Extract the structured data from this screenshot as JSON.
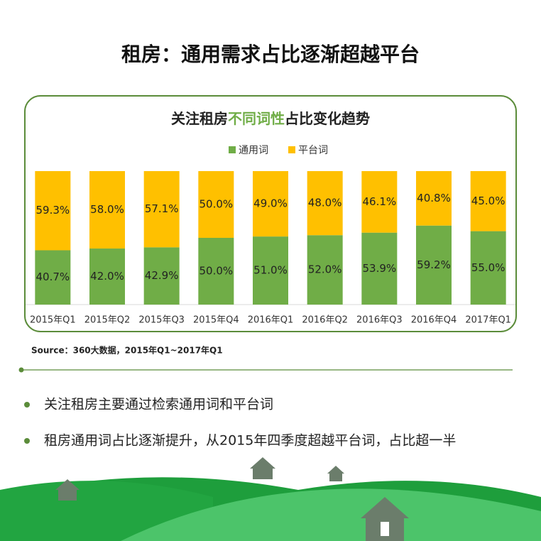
{
  "title": "租房：通用需求占比逐渐超越平台",
  "chart_data": {
    "type": "bar",
    "stacked": true,
    "title": [
      "关注租房",
      "不同词性",
      "占比变化趋势"
    ],
    "categories": [
      "2015年Q1",
      "2015年Q2",
      "2015年Q3",
      "2015年Q4",
      "2016年Q1",
      "2016年Q2",
      "2016年Q3",
      "2016年Q4",
      "2017年Q1"
    ],
    "series": [
      {
        "name": "通用词",
        "color": "#70ad47",
        "values": [
          40.7,
          42.0,
          42.9,
          50.0,
          51.0,
          52.0,
          53.9,
          59.2,
          55.0
        ],
        "value_labels": [
          "40.7%",
          "42.0%",
          "42.9%",
          "50.0%",
          "51.0%",
          "52.0%",
          "53.9%",
          "59.2%",
          "55.0%"
        ]
      },
      {
        "name": "平台词",
        "color": "#ffc000",
        "values": [
          59.3,
          58.0,
          57.1,
          50.0,
          49.0,
          48.0,
          46.1,
          40.8,
          45.0
        ],
        "value_labels": [
          "59.3%",
          "58.0%",
          "57.1%",
          "50.0%",
          "49.0%",
          "48.0%",
          "46.1%",
          "40.8%",
          "45.0%"
        ]
      }
    ],
    "ylim": [
      0,
      100
    ]
  },
  "source": "Source：360大数据，2015年Q1~2017年Q1",
  "bullets": [
    "关注租房主要通过检索通用词和平台词",
    "租房通用词占比逐渐提升，从2015年四季度超越平台词，占比超一半"
  ]
}
